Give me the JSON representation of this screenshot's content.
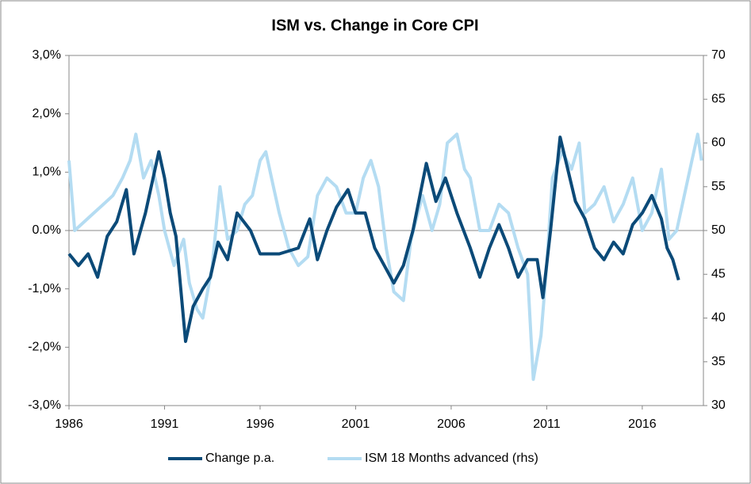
{
  "chart_data": {
    "type": "line",
    "title": "ISM vs. Change in Core CPI",
    "xlim": [
      1986,
      2019.2
    ],
    "xticks": [
      1986,
      1991,
      1996,
      2001,
      2006,
      2011,
      2016
    ],
    "ylim": [
      -3,
      3
    ],
    "yticks": [
      {
        "value": -3,
        "label": "-3,0%"
      },
      {
        "value": -2,
        "label": "-2,0%"
      },
      {
        "value": -1,
        "label": "-1,0%"
      },
      {
        "value": 0,
        "label": "0.0%"
      },
      {
        "value": 1,
        "label": "1,0%"
      },
      {
        "value": 2,
        "label": "2,0%"
      },
      {
        "value": 3,
        "label": "3,0%"
      }
    ],
    "y2lim": [
      30,
      70
    ],
    "y2ticks": [
      30,
      35,
      40,
      45,
      50,
      55,
      60,
      65,
      70
    ],
    "series": [
      {
        "name": "Change p.a.",
        "color": "#0b4a78",
        "x": [
          1986.0,
          1986.5,
          1987.0,
          1987.5,
          1988.0,
          1988.5,
          1989.0,
          1989.4,
          1990.0,
          1990.7,
          1991.0,
          1991.3,
          1991.6,
          1992.1,
          1992.5,
          1993.0,
          1993.4,
          1993.8,
          1994.3,
          1994.8,
          1995.5,
          1996.0,
          1997.0,
          1998.0,
          1998.6,
          1999.0,
          1999.5,
          2000.0,
          2000.6,
          2001.0,
          2001.5,
          2002.0,
          2002.5,
          2003.0,
          2003.5,
          2004.0,
          2004.7,
          2005.2,
          2005.7,
          2006.3,
          2007.0,
          2007.5,
          2008.0,
          2008.5,
          2009.0,
          2009.5,
          2010.0,
          2010.5,
          2010.8,
          2011.2,
          2011.7,
          2012.5,
          2013.0,
          2013.5,
          2014.0,
          2014.5,
          2015.0,
          2015.5,
          2016.0,
          2016.5,
          2017.0,
          2017.3,
          2017.6,
          2017.9
        ],
        "values": [
          -0.4,
          -0.6,
          -0.4,
          -0.8,
          -0.1,
          0.15,
          0.7,
          -0.4,
          0.3,
          1.35,
          0.9,
          0.3,
          -0.1,
          -1.9,
          -1.3,
          -1.0,
          -0.8,
          -0.2,
          -0.5,
          0.3,
          0.0,
          -0.4,
          -0.4,
          -0.3,
          0.2,
          -0.5,
          0.0,
          0.4,
          0.7,
          0.3,
          0.3,
          -0.3,
          -0.6,
          -0.9,
          -0.6,
          0.0,
          1.15,
          0.5,
          0.9,
          0.3,
          -0.3,
          -0.8,
          -0.3,
          0.1,
          -0.3,
          -0.8,
          -0.5,
          -0.5,
          -1.15,
          0.0,
          1.6,
          0.5,
          0.2,
          -0.3,
          -0.5,
          -0.2,
          -0.4,
          0.1,
          0.3,
          0.6,
          0.2,
          -0.3,
          -0.5,
          -0.85
        ]
      },
      {
        "name": "ISM 18 Months advanced (rhs)",
        "color": "#b4dcf2",
        "axis": "y2",
        "x": [
          1986.0,
          1986.3,
          1986.8,
          1987.3,
          1987.8,
          1988.3,
          1988.8,
          1989.2,
          1989.5,
          1989.9,
          1990.3,
          1990.7,
          1991.0,
          1991.5,
          1992.0,
          1992.3,
          1992.7,
          1993.0,
          1993.5,
          1993.9,
          1994.3,
          1994.8,
          1995.2,
          1995.6,
          1996.0,
          1996.3,
          1996.7,
          1997.0,
          1997.5,
          1998.0,
          1998.5,
          1999.0,
          1999.5,
          2000.0,
          2000.5,
          2001.0,
          2001.4,
          2001.8,
          2002.2,
          2002.6,
          2003.0,
          2003.5,
          2003.9,
          2004.5,
          2005.0,
          2005.4,
          2005.8,
          2006.3,
          2006.7,
          2007.0,
          2007.5,
          2008.0,
          2008.5,
          2009.0,
          2009.5,
          2010.0,
          2010.3,
          2010.7,
          2011.0,
          2011.3,
          2011.8,
          2012.3,
          2012.7,
          2013.0,
          2013.5,
          2014.0,
          2014.5,
          2015.0,
          2015.5,
          2016.0,
          2016.5,
          2017.0,
          2017.4,
          2017.8,
          2018.2,
          2018.6,
          2018.9,
          2019.1
        ],
        "values": [
          58,
          50,
          51,
          52,
          53,
          54,
          56,
          58,
          61,
          56,
          58,
          54,
          50,
          46,
          49,
          44,
          41,
          40,
          46,
          55,
          49,
          50,
          53,
          54,
          58,
          59,
          55,
          52,
          48,
          46,
          47,
          54,
          56,
          55,
          52,
          52,
          56,
          58,
          55,
          48,
          43,
          42,
          49,
          54,
          50,
          53,
          60,
          61,
          57,
          56,
          50,
          50,
          53,
          52,
          48,
          45,
          33,
          38,
          46,
          56,
          59,
          57,
          60,
          52,
          53,
          55,
          51,
          53,
          56,
          50,
          52,
          57,
          49,
          50,
          54,
          58,
          61,
          58
        ]
      }
    ]
  }
}
